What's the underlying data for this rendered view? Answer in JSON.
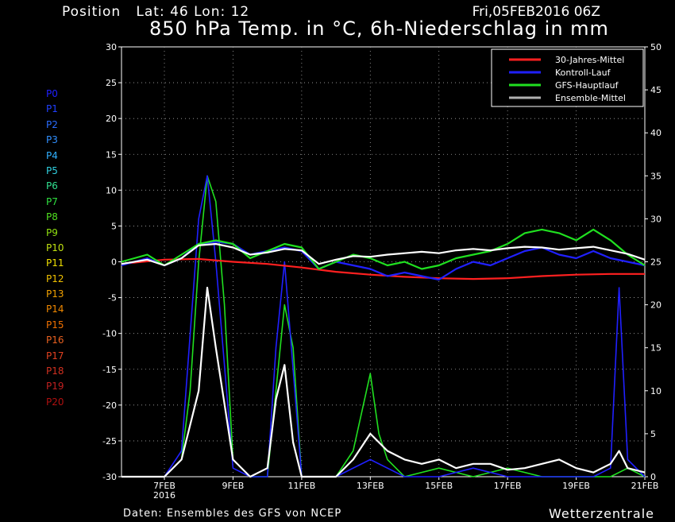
{
  "header": {
    "position": "Position   Lat: 46 Lon: 12",
    "date": "Fri,05FEB2016 06Z",
    "title": "850 hPa Temp. in °C, 6h-Niederschlag in mm"
  },
  "footer": {
    "source": "Daten: Ensembles des GFS von NCEP",
    "brand": "Wetterzentrale"
  },
  "members": [
    {
      "label": "P0",
      "color": "#2020ff"
    },
    {
      "label": "P1",
      "color": "#2040ff"
    },
    {
      "label": "P2",
      "color": "#2a6cff"
    },
    {
      "label": "P3",
      "color": "#3090ff"
    },
    {
      "label": "P4",
      "color": "#30b0ff"
    },
    {
      "label": "P5",
      "color": "#30d0e0"
    },
    {
      "label": "P6",
      "color": "#30e090"
    },
    {
      "label": "P7",
      "color": "#30e040"
    },
    {
      "label": "P8",
      "color": "#50e020"
    },
    {
      "label": "P9",
      "color": "#90e010"
    },
    {
      "label": "P10",
      "color": "#c0e010"
    },
    {
      "label": "P11",
      "color": "#f0e000"
    },
    {
      "label": "P12",
      "color": "#f0c000"
    },
    {
      "label": "P13",
      "color": "#f0a000"
    },
    {
      "label": "P14",
      "color": "#f08800"
    },
    {
      "label": "P15",
      "color": "#f07000"
    },
    {
      "label": "P16",
      "color": "#e86020"
    },
    {
      "label": "P17",
      "color": "#e04020"
    },
    {
      "label": "P18",
      "color": "#d03020"
    },
    {
      "label": "P19",
      "color": "#c02020"
    },
    {
      "label": "P20",
      "color": "#b01010"
    }
  ],
  "legend": [
    {
      "label": "30-Jahres-Mittel",
      "color": "#ff2020"
    },
    {
      "label": "Kontroll-Lauf",
      "color": "#2020ff"
    },
    {
      "label": "GFS-Hauptlauf",
      "color": "#20e020"
    },
    {
      "label": "Ensemble-Mittel",
      "color": "#b0b0b0"
    }
  ],
  "chart_data": {
    "type": "line",
    "title": "850 hPa Temp. in °C, 6h-Niederschlag in mm",
    "x_ticks": [
      {
        "day": 7,
        "label": "7FEB",
        "sub": "2016"
      },
      {
        "day": 9,
        "label": "9FEB",
        "sub": ""
      },
      {
        "day": 11,
        "label": "11FEB",
        "sub": ""
      },
      {
        "day": 13,
        "label": "13FEB",
        "sub": ""
      },
      {
        "day": 15,
        "label": "15FEB",
        "sub": ""
      },
      {
        "day": 17,
        "label": "17FEB",
        "sub": ""
      },
      {
        "day": 19,
        "label": "19FEB",
        "sub": ""
      },
      {
        "day": 21,
        "label": "21FEB",
        "sub": ""
      }
    ],
    "xlim": [
      5.75,
      21
    ],
    "y_left": {
      "min": -30,
      "max": 30,
      "ticks": [
        -30,
        -25,
        -20,
        -15,
        -10,
        -5,
        0,
        5,
        10,
        15,
        20,
        25,
        30
      ]
    },
    "y_right": {
      "min": 0,
      "max": 50,
      "ticks": [
        0,
        5,
        10,
        15,
        20,
        25,
        30,
        35,
        40,
        45,
        50
      ]
    },
    "grid": true,
    "legend_position": "top-right",
    "temperature_series": [
      {
        "name": "30-Jahres-Mittel",
        "x": [
          5.75,
          7,
          8,
          9,
          10,
          11,
          12,
          13,
          14,
          15,
          16,
          17,
          18,
          19,
          20,
          21
        ],
        "y": [
          -0.3,
          0.3,
          0.4,
          0,
          -0.3,
          -0.8,
          -1.4,
          -1.8,
          -2.1,
          -2.3,
          -2.4,
          -2.3,
          -2.0,
          -1.8,
          -1.7,
          -1.7
        ]
      },
      {
        "name": "Kontroll-Lauf",
        "x": [
          5.75,
          6.5,
          7,
          7.5,
          8,
          8.5,
          9,
          9.5,
          10,
          10.5,
          11,
          11.5,
          12,
          12.5,
          13,
          13.5,
          14,
          14.5,
          15,
          15.5,
          16,
          16.5,
          17,
          17.5,
          18,
          18.5,
          19,
          19.5,
          20,
          20.5,
          21
        ],
        "y": [
          -0.5,
          0.5,
          -0.5,
          0.5,
          2.5,
          2.8,
          2.5,
          1,
          1.5,
          2,
          1.5,
          -1,
          0,
          -0.5,
          -1,
          -2,
          -1.5,
          -2,
          -2.5,
          -1,
          0,
          -0.5,
          0.5,
          1.5,
          2,
          1,
          0.5,
          1.5,
          0.5,
          0,
          -0.5
        ]
      },
      {
        "name": "GFS-Hauptlauf",
        "x": [
          5.75,
          6.5,
          7,
          7.5,
          8,
          8.5,
          9,
          9.5,
          10,
          10.5,
          11,
          11.5,
          12,
          12.5,
          13,
          13.5,
          14,
          14.5,
          15,
          15.5,
          16,
          16.5,
          17,
          17.5,
          18,
          18.5,
          19,
          19.5,
          20,
          20.5,
          21
        ],
        "y": [
          0,
          1,
          -0.5,
          1,
          2.5,
          3,
          2.5,
          0.5,
          1.5,
          2.5,
          2,
          -1,
          0,
          1,
          0.5,
          -0.5,
          0,
          -1,
          -0.5,
          0.5,
          1,
          1.5,
          2.5,
          4,
          4.5,
          4,
          3,
          4.5,
          3,
          1,
          -0.5
        ]
      },
      {
        "name": "Ensemble-Mittel",
        "x": [
          5.75,
          6.5,
          7,
          7.5,
          8,
          8.5,
          9,
          9.5,
          10,
          10.5,
          11,
          11.5,
          12,
          12.5,
          13,
          13.5,
          14,
          14.5,
          15,
          15.5,
          16,
          16.5,
          17,
          17.5,
          18,
          18.5,
          19,
          19.5,
          20,
          20.5,
          21
        ],
        "y": [
          -0.3,
          0.3,
          -0.5,
          0.5,
          2.3,
          2.5,
          2,
          1,
          1.3,
          1.8,
          1.6,
          -0.3,
          0.3,
          0.8,
          0.7,
          1,
          1.2,
          1.4,
          1.2,
          1.6,
          1.8,
          1.6,
          1.9,
          2.1,
          2,
          1.7,
          1.9,
          2.1,
          1.6,
          1.1,
          0.3
        ]
      }
    ],
    "precipitation_series": [
      {
        "name": "GFS-Hauptlauf",
        "x": [
          5.75,
          7,
          7.5,
          7.75,
          8,
          8.25,
          8.5,
          8.75,
          9,
          9.5,
          10,
          10.25,
          10.5,
          10.75,
          11,
          12,
          12.5,
          13,
          13.25,
          13.5,
          14,
          15,
          16,
          17,
          18,
          19,
          20,
          20.5,
          21
        ],
        "y": [
          0,
          0,
          2,
          10,
          25,
          35,
          32,
          20,
          2,
          0,
          0,
          10,
          20,
          15,
          0,
          0,
          3,
          12,
          5,
          2,
          0,
          1,
          0,
          1,
          0,
          0,
          0,
          1,
          0
        ]
      },
      {
        "name": "Kontroll-Lauf",
        "x": [
          5.75,
          7,
          7.5,
          8,
          8.25,
          8.5,
          9,
          9.5,
          10,
          10.25,
          10.5,
          11,
          12,
          13,
          14,
          15,
          16,
          17,
          18,
          19,
          19.5,
          20,
          20.25,
          20.5,
          21
        ],
        "y": [
          0,
          0,
          3,
          30,
          35,
          25,
          1,
          0,
          0,
          15,
          25,
          0,
          0,
          2,
          0,
          0,
          1,
          0,
          0,
          0,
          0,
          1,
          22,
          2,
          0
        ]
      },
      {
        "name": "Ensemble-Mittel",
        "x": [
          5.75,
          7,
          7.5,
          8,
          8.25,
          8.5,
          9,
          9.5,
          10,
          10.25,
          10.5,
          10.75,
          11,
          12,
          12.5,
          13,
          13.5,
          14,
          14.5,
          15,
          15.5,
          16,
          16.5,
          17,
          17.5,
          18,
          18.5,
          19,
          19.5,
          20,
          20.25,
          20.5,
          21
        ],
        "y": [
          0,
          0,
          2,
          10,
          22,
          15,
          2,
          0,
          1,
          9,
          13,
          4,
          0,
          0,
          2,
          5,
          3,
          2,
          1.5,
          2,
          1,
          1.5,
          1.5,
          0.8,
          1,
          1.5,
          2,
          1,
          0.5,
          1.5,
          3,
          1,
          0.5
        ]
      }
    ]
  }
}
